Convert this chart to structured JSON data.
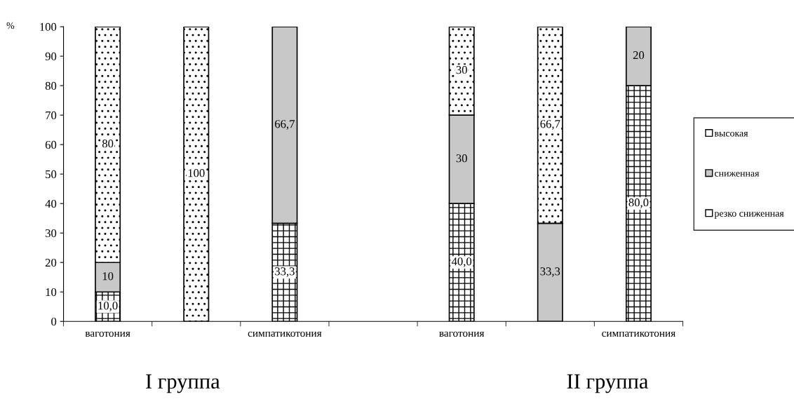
{
  "chart_data": {
    "type": "bar",
    "stacked": true,
    "categories": [
      "ваготония",
      null,
      "симпатикотония",
      null,
      "ваготония",
      null,
      "симпатикотония"
    ],
    "series": [
      {
        "name": "резко сниженная",
        "color": "#ffffff",
        "values": [
          10,
          0,
          33.3,
          null,
          40,
          0,
          80
        ],
        "value_labels": [
          "10,0",
          null,
          "33,3",
          null,
          "40,0",
          null,
          "80,0"
        ]
      },
      {
        "name": "сниженная",
        "color": "#c8c8c8",
        "values": [
          10,
          0,
          66.7,
          null,
          30,
          33.3,
          20
        ],
        "value_labels": [
          "10",
          null,
          "66,7",
          null,
          "30",
          "33,3",
          "20"
        ]
      },
      {
        "name": "высокая",
        "color": "#ffffff",
        "values": [
          80,
          100,
          0,
          null,
          30,
          66.7,
          0
        ],
        "value_labels": [
          "80",
          "100",
          null,
          null,
          "30",
          "66,7",
          null
        ]
      }
    ],
    "ylim": [
      0,
      100
    ],
    "yticks": [
      0,
      10,
      20,
      30,
      40,
      50,
      60,
      70,
      80,
      90,
      100
    ],
    "legend": "right",
    "grid": false,
    "annotations": [
      "%",
      "I группа",
      "II группа"
    ]
  }
}
